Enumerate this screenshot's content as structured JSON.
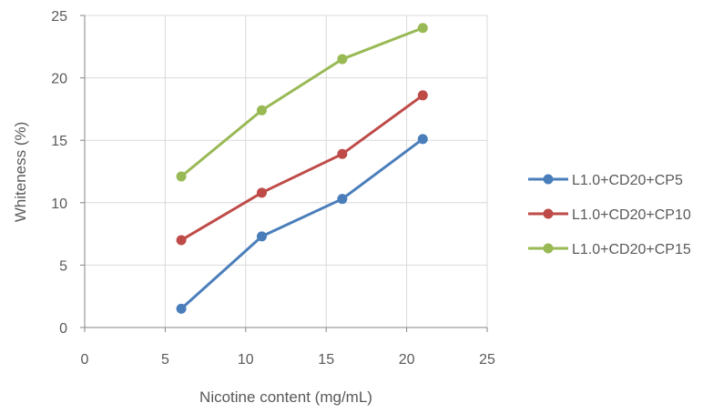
{
  "chart_data": {
    "type": "line",
    "title": "",
    "xlabel": "Nicotine content (mg/mL)",
    "ylabel": "Whiteness  (%)",
    "xlim": [
      0,
      25
    ],
    "ylim": [
      0,
      25
    ],
    "xticks": [
      0,
      5,
      10,
      15,
      20,
      25
    ],
    "yticks": [
      0,
      5,
      10,
      15,
      20,
      25
    ],
    "grid": true,
    "legend_position": "right",
    "series": [
      {
        "name": "L1.0+CD20+CP5",
        "color": "#4a7ebb",
        "x": [
          6,
          11,
          16,
          21
        ],
        "y": [
          1.5,
          7.3,
          10.3,
          15.1
        ]
      },
      {
        "name": "L1.0+CD20+CP10",
        "color": "#be4b48",
        "x": [
          6,
          11,
          16,
          21
        ],
        "y": [
          7.0,
          10.8,
          13.9,
          18.6
        ]
      },
      {
        "name": "L1.0+CD20+CP15",
        "color": "#98b954",
        "x": [
          6,
          11,
          16,
          21
        ],
        "y": [
          12.1,
          17.4,
          21.5,
          24.0
        ]
      }
    ]
  }
}
